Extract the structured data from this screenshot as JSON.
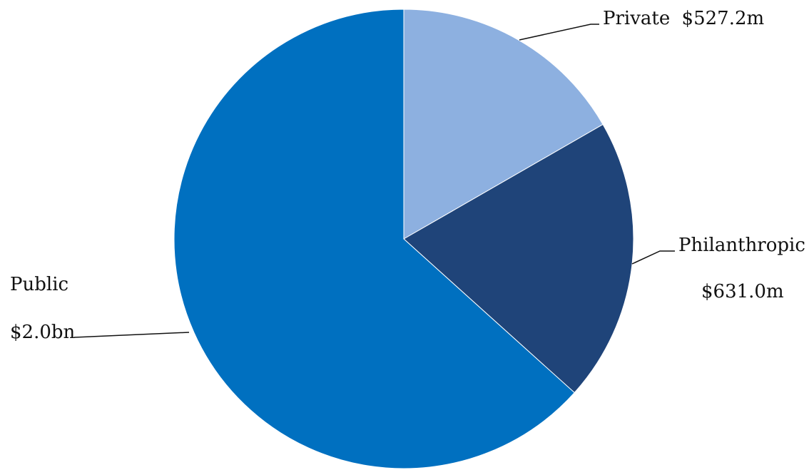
{
  "chart_data": {
    "type": "pie",
    "title": "",
    "slices": [
      {
        "label": "Private",
        "value_label": "$527.2m",
        "value": 527.2,
        "color": "#8db0e0"
      },
      {
        "label": "Philanthropic",
        "value_label": "$631.0m",
        "value": 631.0,
        "color": "#1f4479"
      },
      {
        "label": "Public",
        "value_label": "$2.0bn",
        "value": 2000.0,
        "color": "#0070c0"
      }
    ],
    "unit": "$m",
    "start": "top",
    "direction": "clockwise",
    "legend": "none"
  }
}
